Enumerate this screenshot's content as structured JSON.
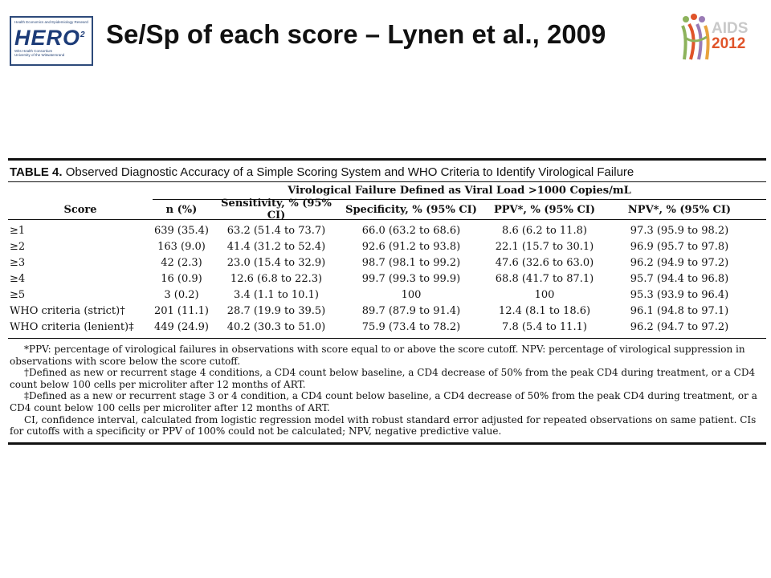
{
  "header": {
    "title": "Se/Sp of each score – Lynen et al., 2009",
    "hero_logo": {
      "top_text": "Health Economics and Epidemiology Research Office",
      "wordmark": "HERO",
      "superscript": "2",
      "bottom_text_1": "Wits Health Consortium",
      "bottom_text_2": "University of the Witwatersrand"
    },
    "aids_logo": {
      "line1": "AIDS",
      "line2": "2012",
      "colors": [
        "#8db35c",
        "#e0542a",
        "#9a7bb5",
        "#e8a33d"
      ]
    }
  },
  "table": {
    "caption_label": "TABLE 4.",
    "caption_text": "Observed Diagnostic Accuracy of a Simple Scoring System and WHO Criteria to Identify Virological Failure",
    "spanning_header": "Virological Failure Defined as Viral Load >1000 Copies/mL",
    "columns": [
      "Score",
      "n (%)",
      "Sensitivity, % (95% CI)",
      "Specificity, % (95% CI)",
      "PPV*, % (95% CI)",
      "NPV*, % (95% CI)"
    ],
    "rows": [
      [
        "≥1",
        "639 (35.4)",
        "63.2 (51.4 to 73.7)",
        "66.0 (63.2 to 68.6)",
        "8.6 (6.2 to 11.8)",
        "97.3 (95.9 to 98.2)"
      ],
      [
        "≥2",
        "163 (9.0)",
        "41.4 (31.2 to 52.4)",
        "92.6 (91.2 to 93.8)",
        "22.1 (15.7 to 30.1)",
        "96.9 (95.7 to 97.8)"
      ],
      [
        "≥3",
        "42 (2.3)",
        "23.0 (15.4 to 32.9)",
        "98.7 (98.1 to 99.2)",
        "47.6 (32.6 to 63.0)",
        "96.2 (94.9 to 97.2)"
      ],
      [
        "≥4",
        "16 (0.9)",
        "12.6 (6.8 to 22.3)",
        "99.7 (99.3 to 99.9)",
        "68.8 (41.7 to 87.1)",
        "95.7 (94.4 to 96.8)"
      ],
      [
        "≥5",
        "3 (0.2)",
        "3.4 (1.1 to 10.1)",
        "100",
        "100",
        "95.3 (93.9 to 96.4)"
      ],
      [
        "WHO criteria (strict)†",
        "201 (11.1)",
        "28.7 (19.9 to 39.5)",
        "89.7 (87.9 to 91.4)",
        "12.4 (8.1 to 18.6)",
        "96.1 (94.8 to 97.1)"
      ],
      [
        "WHO criteria (lenient)‡",
        "449 (24.9)",
        "40.2 (30.3 to 51.0)",
        "75.9 (73.4 to 78.2)",
        "7.8 (5.4 to 11.1)",
        "96.2 (94.7 to 97.2)"
      ]
    ],
    "notes": [
      "*PPV: percentage of virological failures in observations with score equal to or above the score cutoff. NPV: percentage of virological suppression in observations with score below the score cutoff.",
      "†Defined as new or recurrent stage 4 conditions, a CD4 count below baseline, a CD4 decrease of 50% from the peak CD4 during treatment, or a CD4 count below 100 cells per microliter after 12 months of ART.",
      "‡Defined as a new or recurrent stage 3 or 4 condition, a CD4 count below baseline, a CD4 decrease of 50% from the peak CD4 during treatment, or a CD4 count below 100 cells per microliter after 12 months of ART.",
      "CI, confidence interval, calculated from logistic regression model with robust standard error adjusted for repeated observations on same patient. CIs for cutoffs with a specificity or PPV of 100% could not be calculated; NPV, negative predictive value."
    ]
  }
}
